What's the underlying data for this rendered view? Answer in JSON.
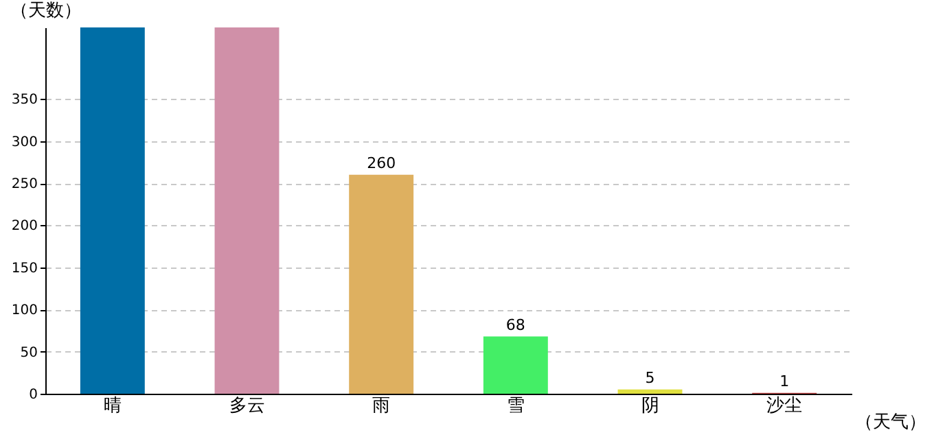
{
  "chart_data": {
    "type": "bar",
    "xlabel": "（天气）",
    "ylabel": "（天数）",
    "categories": [
      "晴",
      "多云",
      "雨",
      "雪",
      "阴",
      "沙尘"
    ],
    "values": [
      435,
      435,
      260,
      68,
      5,
      1
    ],
    "value_labels": [
      null,
      null,
      "260",
      "68",
      "5",
      "1"
    ],
    "colors": [
      "#006ea6",
      "#d090a8",
      "#deb060",
      "#44ee66",
      "#e0e040",
      "#c04040"
    ],
    "ylim": [
      0,
      435
    ],
    "yticks": [
      0,
      50,
      100,
      150,
      200,
      250,
      300,
      350
    ],
    "grid": "y",
    "legend": false
  }
}
